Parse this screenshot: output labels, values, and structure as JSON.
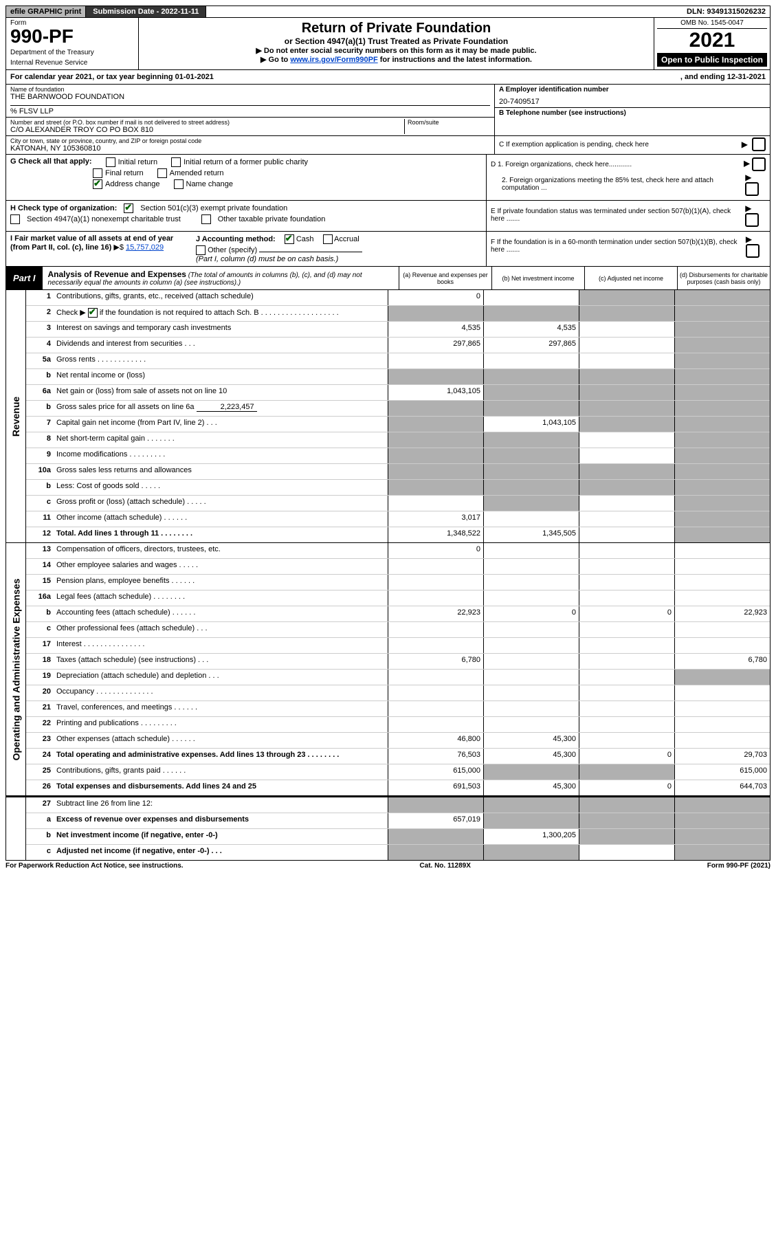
{
  "topbar": {
    "efile_label": "efile GRAPHIC print",
    "submission_label": "Submission Date - 2022-11-11",
    "dln_label": "DLN: 93491315026232"
  },
  "header": {
    "form_word": "Form",
    "form_number": "990-PF",
    "dept1": "Department of the Treasury",
    "dept2": "Internal Revenue Service",
    "title": "Return of Private Foundation",
    "subtitle": "or Section 4947(a)(1) Trust Treated as Private Foundation",
    "note1_prefix": "▶ Do not enter social security numbers on this form as it may be made public.",
    "note2_prefix": "▶ Go to ",
    "note2_link": "www.irs.gov/Form990PF",
    "note2_suffix": " for instructions and the latest information.",
    "omb": "OMB No. 1545-0047",
    "year": "2021",
    "open_public": "Open to Public Inspection"
  },
  "calendar_bar": {
    "text_left": "For calendar year 2021, or tax year beginning 01-01-2021",
    "text_right": ", and ending 12-31-2021"
  },
  "entity": {
    "name_caption": "Name of foundation",
    "name_value": "THE BARNWOOD FOUNDATION",
    "care_of": "% FLSV LLP",
    "address_caption": "Number and street (or P.O. box number if mail is not delivered to street address)",
    "address_value": "C/O ALEXANDER TROY CO PO BOX 810",
    "room_caption": "Room/suite",
    "city_caption": "City or town, state or province, country, and ZIP or foreign postal code",
    "city_value": "KATONAH, NY  105360810",
    "ein_caption": "A Employer identification number",
    "ein_value": "20-7409517",
    "phone_caption": "B Telephone number (see instructions)",
    "c_caption": "C If exemption application is pending, check here"
  },
  "checks": {
    "g_label": "G Check all that apply:",
    "initial": "Initial return",
    "initial_former": "Initial return of a former public charity",
    "final": "Final return",
    "amended": "Amended return",
    "address_change": "Address change",
    "name_change": "Name change",
    "d1": "D 1. Foreign organizations, check here............",
    "d2": "2. Foreign organizations meeting the 85% test, check here and attach computation ...",
    "e": "E  If private foundation status was terminated under section 507(b)(1)(A), check here .......",
    "h_label": "H Check type of organization:",
    "h_501c3": "Section 501(c)(3) exempt private foundation",
    "h_4947": "Section 4947(a)(1) nonexempt charitable trust",
    "h_other_taxable": "Other taxable private foundation",
    "i_label": "I Fair market value of all assets at end of year (from Part II, col. (c), line 16)",
    "i_value": "15,757,029",
    "j_label": "J Accounting method:",
    "j_cash": "Cash",
    "j_accrual": "Accrual",
    "j_other": "Other (specify)",
    "j_note": "(Part I, column (d) must be on cash basis.)",
    "f": "F  If the foundation is in a 60-month termination under section 507(b)(1)(B), check here ......."
  },
  "part1": {
    "label": "Part I",
    "head": "Analysis of Revenue and Expenses",
    "head_note": " (The total of amounts in columns (b), (c), and (d) may not necessarily equal the amounts in column (a) (see instructions).)",
    "col_a": "(a) Revenue and expenses per books",
    "col_b": "(b) Net investment income",
    "col_c": "(c) Adjusted net income",
    "col_d": "(d) Disbursements for charitable purposes (cash basis only)"
  },
  "side_labels": {
    "revenue": "Revenue",
    "expenses": "Operating and Administrative Expenses"
  },
  "rows": {
    "r1": {
      "num": "1",
      "desc": "Contributions, gifts, grants, etc., received (attach schedule)",
      "a": "0",
      "b": "",
      "c_shaded": true,
      "d_shaded": true
    },
    "r2": {
      "num": "2",
      "desc_prefix": "Check ▶",
      "desc_suffix": " if the foundation is not required to attach Sch. B . . . . . . . . . . . . . . . . . . .",
      "checked": true,
      "a_shaded": true,
      "b_shaded": true,
      "c_shaded": true,
      "d_shaded": true
    },
    "r3": {
      "num": "3",
      "desc": "Interest on savings and temporary cash investments",
      "a": "4,535",
      "b": "4,535",
      "d_shaded": true
    },
    "r4": {
      "num": "4",
      "desc": "Dividends and interest from securities . . .",
      "a": "297,865",
      "b": "297,865",
      "d_shaded": true
    },
    "r5a": {
      "num": "5a",
      "desc": "Gross rents . . . . . . . . . . . .",
      "d_shaded": true
    },
    "r5b": {
      "num": "b",
      "desc": "Net rental income or (loss)",
      "a_shaded": true,
      "b_shaded": true,
      "c_shaded": true,
      "d_shaded": true
    },
    "r6a": {
      "num": "6a",
      "desc": "Net gain or (loss) from sale of assets not on line 10",
      "a": "1,043,105",
      "b_shaded": true,
      "c_shaded": true,
      "d_shaded": true
    },
    "r6b": {
      "num": "b",
      "desc_prefix": "Gross sales price for all assets on line 6a",
      "inline_val": "2,223,457",
      "a_shaded": true,
      "b_shaded": true,
      "c_shaded": true,
      "d_shaded": true
    },
    "r7": {
      "num": "7",
      "desc": "Capital gain net income (from Part IV, line 2) . . .",
      "a_shaded": true,
      "b": "1,043,105",
      "c_shaded": true,
      "d_shaded": true
    },
    "r8": {
      "num": "8",
      "desc": "Net short-term capital gain . . . . . . .",
      "a_shaded": true,
      "b_shaded": true,
      "d_shaded": true
    },
    "r9": {
      "num": "9",
      "desc": "Income modifications . . . . . . . . .",
      "a_shaded": true,
      "b_shaded": true,
      "d_shaded": true
    },
    "r10a": {
      "num": "10a",
      "desc": "Gross sales less returns and allowances",
      "a_shaded": true,
      "b_shaded": true,
      "c_shaded": true,
      "d_shaded": true
    },
    "r10b": {
      "num": "b",
      "desc": "Less: Cost of goods sold . . . . .",
      "a_shaded": true,
      "b_shaded": true,
      "c_shaded": true,
      "d_shaded": true
    },
    "r10c": {
      "num": "c",
      "desc": "Gross profit or (loss) (attach schedule) . . . . .",
      "b_shaded": true,
      "d_shaded": true
    },
    "r11": {
      "num": "11",
      "desc": "Other income (attach schedule) . . . . . .",
      "a": "3,017",
      "d_shaded": true
    },
    "r12": {
      "num": "12",
      "desc": "Total. Add lines 1 through 11 . . . . . . . .",
      "bold": true,
      "a": "1,348,522",
      "b": "1,345,505",
      "d_shaded": true
    },
    "r13": {
      "num": "13",
      "desc": "Compensation of officers, directors, trustees, etc.",
      "a": "0"
    },
    "r14": {
      "num": "14",
      "desc": "Other employee salaries and wages . . . . ."
    },
    "r15": {
      "num": "15",
      "desc": "Pension plans, employee benefits . . . . . ."
    },
    "r16a": {
      "num": "16a",
      "desc": "Legal fees (attach schedule) . . . . . . . ."
    },
    "r16b": {
      "num": "b",
      "desc": "Accounting fees (attach schedule) . . . . . .",
      "a": "22,923",
      "b": "0",
      "c": "0",
      "d": "22,923"
    },
    "r16c": {
      "num": "c",
      "desc": "Other professional fees (attach schedule) . . ."
    },
    "r17": {
      "num": "17",
      "desc": "Interest . . . . . . . . . . . . . . ."
    },
    "r18": {
      "num": "18",
      "desc": "Taxes (attach schedule) (see instructions) . . .",
      "a": "6,780",
      "d": "6,780"
    },
    "r19": {
      "num": "19",
      "desc": "Depreciation (attach schedule) and depletion . . .",
      "d_shaded": true
    },
    "r20": {
      "num": "20",
      "desc": "Occupancy . . . . . . . . . . . . . ."
    },
    "r21": {
      "num": "21",
      "desc": "Travel, conferences, and meetings . . . . . ."
    },
    "r22": {
      "num": "22",
      "desc": "Printing and publications . . . . . . . . ."
    },
    "r23": {
      "num": "23",
      "desc": "Other expenses (attach schedule) . . . . . .",
      "a": "46,800",
      "b": "45,300"
    },
    "r24": {
      "num": "24",
      "desc": "Total operating and administrative expenses. Add lines 13 through 23 . . . . . . . .",
      "bold": true,
      "a": "76,503",
      "b": "45,300",
      "c": "0",
      "d": "29,703"
    },
    "r25": {
      "num": "25",
      "desc": "Contributions, gifts, grants paid . . . . . .",
      "a": "615,000",
      "b_shaded": true,
      "c_shaded": true,
      "d": "615,000"
    },
    "r26": {
      "num": "26",
      "desc": "Total expenses and disbursements. Add lines 24 and 25",
      "bold": true,
      "a": "691,503",
      "b": "45,300",
      "c": "0",
      "d": "644,703"
    },
    "r27": {
      "num": "27",
      "desc": "Subtract line 26 from line 12:",
      "a_shaded": true,
      "b_shaded": true,
      "c_shaded": true,
      "d_shaded": true
    },
    "r27a": {
      "num": "a",
      "desc": "Excess of revenue over expenses and disbursements",
      "bold": true,
      "a": "657,019",
      "b_shaded": true,
      "c_shaded": true,
      "d_shaded": true
    },
    "r27b": {
      "num": "b",
      "desc": "Net investment income (if negative, enter -0-)",
      "bold": true,
      "a_shaded": true,
      "b": "1,300,205",
      "c_shaded": true,
      "d_shaded": true
    },
    "r27c": {
      "num": "c",
      "desc": "Adjusted net income (if negative, enter -0-) . . .",
      "bold": true,
      "a_shaded": true,
      "b_shaded": true,
      "d_shaded": true
    }
  },
  "footer": {
    "left": "For Paperwork Reduction Act Notice, see instructions.",
    "center": "Cat. No. 11289X",
    "right": "Form 990-PF (2021)"
  }
}
